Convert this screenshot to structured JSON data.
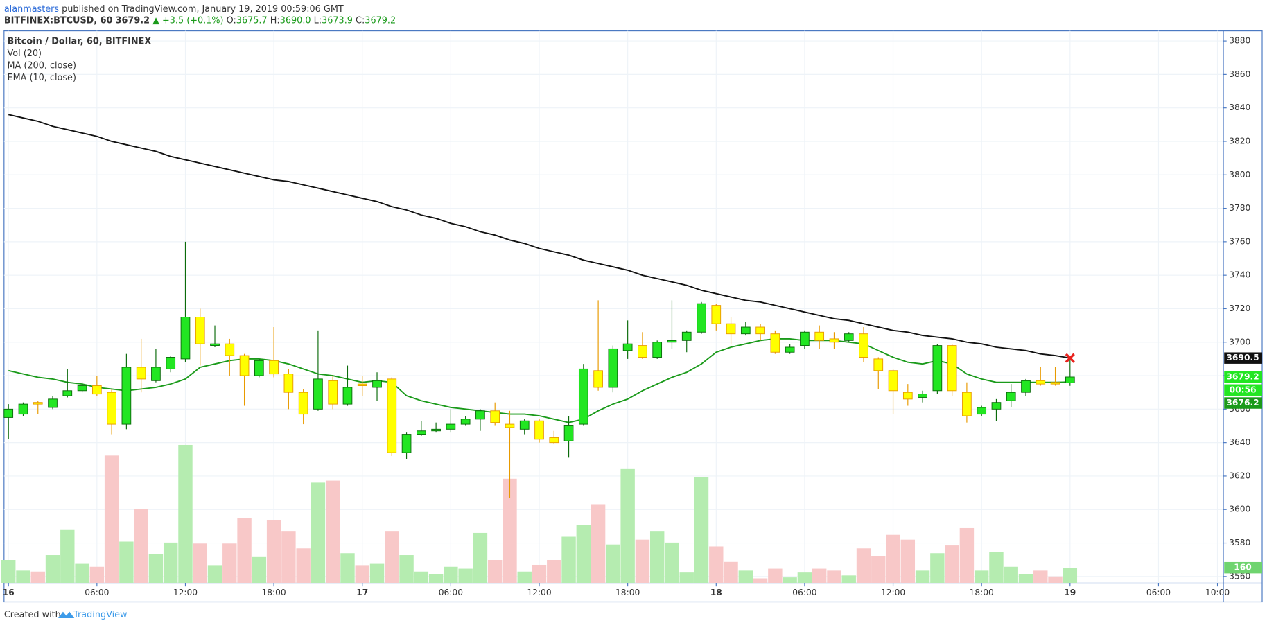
{
  "header": {
    "author": "alanmasters",
    "published": "published on TradingView.com, January 19, 2019 00:59:06 GMT",
    "symbol": "BITFINEX:BTCUSD, 60",
    "price": "3679.2",
    "change": "▲ +3.5 (+0.1%)",
    "ohlc": [
      {
        "key": "O:",
        "value": "3675.7"
      },
      {
        "key": "H:",
        "value": "3690.0"
      },
      {
        "key": "L:",
        "value": "3673.9"
      },
      {
        "key": "C:",
        "value": "3679.2"
      }
    ]
  },
  "footer": {
    "created": "Created with",
    "brand": "TradingView"
  },
  "chart_data": {
    "type": "candlestick",
    "title": "Bitcoin / Dollar, 60, BITFINEX",
    "x": [
      0,
      1,
      2,
      3,
      4,
      5,
      6,
      7,
      8,
      9,
      10,
      11,
      12,
      13,
      14,
      15,
      16,
      17,
      18,
      19,
      20,
      21,
      22,
      23,
      24,
      25,
      26,
      27,
      28,
      29,
      30,
      31,
      32,
      33,
      34,
      35,
      36,
      37,
      38,
      39,
      40,
      41,
      42,
      43,
      44,
      45,
      46,
      47,
      48,
      49,
      50,
      51,
      52,
      53,
      54,
      55,
      56,
      57,
      58,
      59,
      60,
      61,
      62,
      63,
      64,
      65,
      66,
      67,
      68,
      69,
      70,
      71,
      72
    ],
    "open": [
      3655,
      3657,
      3664,
      3661,
      3668,
      3671,
      3674,
      3670,
      3651,
      3685,
      3677,
      3684,
      3690,
      3715,
      3698,
      3699,
      3692,
      3680,
      3689,
      3681,
      3670,
      3660,
      3677,
      3663,
      3675,
      3673,
      3678,
      3634,
      3645,
      3647,
      3648,
      3651,
      3654,
      3659,
      3651,
      3648,
      3653,
      3643,
      3641,
      3651,
      3683,
      3673,
      3695,
      3698,
      3691,
      3700,
      3701,
      3706,
      3722,
      3711,
      3705,
      3709,
      3705,
      3694,
      3698,
      3706,
      3702,
      3701,
      3705,
      3690,
      3683,
      3670,
      3667,
      3671,
      3698,
      3670,
      3657,
      3660,
      3665,
      3670,
      3677,
      3676,
      3675.7
    ],
    "high": [
      3663,
      3664,
      3665,
      3668,
      3684,
      3676,
      3680,
      3672,
      3693,
      3702,
      3696,
      3692,
      3760,
      3720,
      3710,
      3702,
      3693,
      3690,
      3709,
      3684,
      3672,
      3707,
      3680,
      3686,
      3680,
      3682,
      3679,
      3646,
      3653,
      3652,
      3660,
      3656,
      3660,
      3664,
      3659,
      3654,
      3654,
      3647,
      3656,
      3687,
      3725,
      3698,
      3713,
      3706,
      3701,
      3725,
      3707,
      3724,
      3723,
      3715,
      3712,
      3711,
      3707,
      3699,
      3707,
      3710,
      3706,
      3706,
      3709,
      3691,
      3684,
      3675,
      3671,
      3699,
      3699,
      3676,
      3662,
      3666,
      3675,
      3678,
      3685,
      3685,
      3690
    ],
    "low": [
      3642,
      3656,
      3657,
      3660,
      3667,
      3670,
      3668,
      3645,
      3648,
      3670,
      3676,
      3682,
      3688,
      3686,
      3697,
      3680,
      3662,
      3679,
      3679,
      3660,
      3651,
      3659,
      3660,
      3662,
      3668,
      3665,
      3632,
      3630,
      3644,
      3646,
      3646,
      3650,
      3647,
      3650,
      3607,
      3645,
      3640,
      3639,
      3631,
      3650,
      3671,
      3670,
      3690,
      3690,
      3690,
      3696,
      3694,
      3705,
      3707,
      3699,
      3704,
      3701,
      3693,
      3693,
      3696,
      3696,
      3696,
      3700,
      3688,
      3672,
      3657,
      3662,
      3664,
      3669,
      3668,
      3652,
      3656,
      3653,
      3661,
      3668,
      3674,
      3674,
      3673.9
    ],
    "close": [
      3660,
      3663,
      3663,
      3666,
      3671,
      3674,
      3669,
      3651,
      3685,
      3678,
      3685,
      3691,
      3715,
      3699,
      3699,
      3692,
      3680,
      3689,
      3681,
      3670,
      3657,
      3678,
      3663,
      3673,
      3674,
      3677,
      3634,
      3645,
      3647,
      3648,
      3651,
      3654,
      3659,
      3652,
      3649,
      3653,
      3642,
      3640,
      3650,
      3684,
      3673,
      3696,
      3699,
      3691,
      3700,
      3701,
      3706,
      3723,
      3711,
      3705,
      3709,
      3705,
      3694,
      3697,
      3706,
      3701,
      3700,
      3705,
      3691,
      3683,
      3671,
      3666,
      3669,
      3698,
      3671,
      3656,
      3661,
      3664,
      3670,
      3677,
      3675,
      3675,
      3679.2
    ],
    "up_color": "#22e622",
    "up_border": "#0b6b0b",
    "down_color": "#ffff00",
    "down_border": "#e89a00",
    "volume": {
      "name": "Vol (20)",
      "up_color": "#b5ecb0",
      "down_color": "#f8c8c8",
      "label_color": "#6fd46f",
      "values": [
        240,
        130,
        120,
        290,
        550,
        200,
        170,
        1320,
        430,
        770,
        300,
        420,
        1430,
        410,
        180,
        410,
        670,
        270,
        650,
        540,
        360,
        1040,
        1060,
        310,
        180,
        200,
        540,
        290,
        120,
        90,
        170,
        150,
        520,
        240,
        1080,
        120,
        190,
        240,
        480,
        600,
        810,
        400,
        1180,
        450,
        540,
        420,
        110,
        1100,
        380,
        220,
        130,
        50,
        150,
        60,
        110,
        150,
        130,
        80,
        360,
        280,
        500,
        450,
        130,
        310,
        390,
        570,
        130,
        320,
        170,
        90,
        130,
        70,
        160
      ]
    },
    "ma": {
      "name": "MA (200, close)",
      "color": "#111111",
      "values": [
        3836,
        3834,
        3832,
        3829,
        3827,
        3825,
        3823,
        3820,
        3818,
        3816,
        3814,
        3811,
        3809,
        3807,
        3805,
        3803,
        3801,
        3799,
        3797,
        3796,
        3794,
        3792,
        3790,
        3788,
        3786,
        3784,
        3781,
        3779,
        3776,
        3774,
        3771,
        3769,
        3766,
        3764,
        3761,
        3759,
        3756,
        3754,
        3752,
        3749,
        3747,
        3745,
        3743,
        3740,
        3738,
        3736,
        3734,
        3731,
        3729,
        3727,
        3725,
        3724,
        3722,
        3720,
        3718,
        3716,
        3714,
        3713,
        3711,
        3709,
        3707,
        3706,
        3704,
        3703,
        3702,
        3700,
        3699,
        3697,
        3696,
        3695,
        3693,
        3692,
        3690.5
      ]
    },
    "ema": {
      "name": "EMA (10, close)",
      "color": "#1a9a1a",
      "values": [
        3683,
        3681,
        3679,
        3678,
        3676,
        3675,
        3673,
        3672,
        3671,
        3672,
        3673,
        3675,
        3678,
        3685,
        3687,
        3689,
        3690,
        3690,
        3689,
        3687,
        3684,
        3681,
        3680,
        3678,
        3676,
        3677,
        3676,
        3668,
        3665,
        3663,
        3661,
        3660,
        3659,
        3658,
        3657,
        3657,
        3656,
        3654,
        3652,
        3654,
        3659,
        3663,
        3666,
        3671,
        3675,
        3679,
        3682,
        3687,
        3694,
        3697,
        3699,
        3701,
        3702,
        3702,
        3701,
        3701,
        3701,
        3700,
        3699,
        3695,
        3691,
        3688,
        3687,
        3689,
        3687,
        3681,
        3678,
        3676,
        3676,
        3676,
        3676,
        3676,
        3676.2
      ]
    },
    "countdown": "00:56",
    "xlim": [
      -0.3,
      82.4
    ],
    "xticks": [
      {
        "value": 0,
        "label": "16"
      },
      {
        "value": 6,
        "label": "06:00"
      },
      {
        "value": 12,
        "label": "12:00"
      },
      {
        "value": 18,
        "label": "18:00"
      },
      {
        "value": 24,
        "label": "17"
      },
      {
        "value": 30,
        "label": "06:00"
      },
      {
        "value": 36,
        "label": "12:00"
      },
      {
        "value": 42,
        "label": "18:00"
      },
      {
        "value": 48,
        "label": "18"
      },
      {
        "value": 54,
        "label": "06:00"
      },
      {
        "value": 60,
        "label": "12:00"
      },
      {
        "value": 66,
        "label": "18:00"
      },
      {
        "value": 72,
        "label": "19"
      },
      {
        "value": 78,
        "label": "06:00"
      },
      {
        "value": 82,
        "label": "10:00"
      }
    ],
    "ylim": [
      3556,
      3886
    ],
    "yticks": [
      3560,
      3580,
      3600,
      3620,
      3640,
      3660,
      3680,
      3700,
      3720,
      3740,
      3760,
      3780,
      3800,
      3820,
      3840,
      3860,
      3880
    ],
    "grid": true
  }
}
